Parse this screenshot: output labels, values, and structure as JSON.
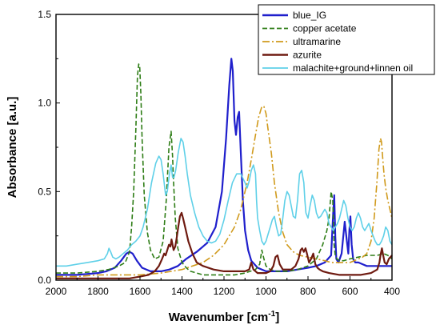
{
  "chart_data": {
    "type": "line",
    "title": "",
    "xlabel": "Wavenumber [cm",
    "xlabel_sup": "-1",
    "xlabel_end": "]",
    "ylabel": "Absorbance [a.u.]",
    "xlim": [
      2000,
      400
    ],
    "ylim": [
      0,
      1.5
    ],
    "x_reversed": true,
    "xticks": [
      2000,
      1800,
      1600,
      1400,
      1200,
      1000,
      800,
      600,
      400
    ],
    "xtick_labels": [
      "2000",
      "1800",
      "1600",
      "1400",
      "1200",
      "1000",
      "800",
      "600",
      "400"
    ],
    "yticks": [
      0.0,
      0.5,
      1.0,
      1.5
    ],
    "ytick_labels": [
      "0.0",
      "0.5",
      "1.0",
      "1.5"
    ],
    "grid": false,
    "legend_position": "top-right",
    "series": [
      {
        "name": "blue_IG",
        "color": "#1f1fcc",
        "dash": "solid",
        "x": [
          2000,
          1900,
          1800,
          1760,
          1720,
          1690,
          1665,
          1650,
          1635,
          1615,
          1590,
          1550,
          1500,
          1460,
          1420,
          1380,
          1330,
          1280,
          1240,
          1210,
          1190,
          1175,
          1165,
          1158,
          1150,
          1143,
          1135,
          1128,
          1120,
          1110,
          1100,
          1085,
          1070,
          1040,
          1000,
          960,
          900,
          850,
          800,
          760,
          720,
          690,
          680,
          675,
          670,
          665,
          655,
          640,
          625,
          615,
          608,
          603,
          598,
          592,
          585,
          575,
          560,
          540,
          520,
          500,
          480,
          460,
          440,
          420,
          400
        ],
        "y": [
          0.03,
          0.03,
          0.04,
          0.05,
          0.07,
          0.11,
          0.15,
          0.16,
          0.15,
          0.11,
          0.07,
          0.05,
          0.05,
          0.06,
          0.08,
          0.12,
          0.16,
          0.21,
          0.3,
          0.5,
          0.8,
          1.1,
          1.25,
          1.18,
          0.9,
          0.82,
          0.92,
          0.95,
          0.72,
          0.45,
          0.28,
          0.17,
          0.11,
          0.07,
          0.05,
          0.05,
          0.05,
          0.06,
          0.07,
          0.08,
          0.1,
          0.14,
          0.38,
          0.48,
          0.25,
          0.12,
          0.1,
          0.15,
          0.33,
          0.22,
          0.15,
          0.28,
          0.36,
          0.2,
          0.12,
          0.1,
          0.1,
          0.09,
          0.08,
          0.08,
          0.08,
          0.08,
          0.08,
          0.08,
          0.08
        ]
      },
      {
        "name": "copper acetate",
        "color": "#2e7d16",
        "dash": "dashed",
        "x": [
          2000,
          1900,
          1800,
          1750,
          1700,
          1670,
          1650,
          1640,
          1630,
          1620,
          1612,
          1606,
          1601,
          1596,
          1590,
          1580,
          1565,
          1550,
          1530,
          1510,
          1490,
          1475,
          1462,
          1452,
          1445,
          1440,
          1432,
          1420,
          1400,
          1380,
          1360,
          1330,
          1300,
          1250,
          1200,
          1150,
          1100,
          1050,
          1030,
          1020,
          1010,
          1000,
          980,
          950,
          900,
          850,
          800,
          760,
          730,
          710,
          700,
          690,
          682,
          676,
          670,
          662,
          650,
          630,
          600,
          560,
          520,
          500,
          470,
          440,
          420,
          400
        ],
        "y": [
          0.04,
          0.04,
          0.05,
          0.06,
          0.08,
          0.1,
          0.16,
          0.3,
          0.5,
          0.85,
          1.15,
          1.22,
          1.2,
          1.05,
          0.8,
          0.48,
          0.27,
          0.17,
          0.12,
          0.13,
          0.22,
          0.45,
          0.75,
          0.84,
          0.7,
          0.55,
          0.35,
          0.18,
          0.1,
          0.07,
          0.05,
          0.04,
          0.03,
          0.03,
          0.03,
          0.03,
          0.04,
          0.06,
          0.09,
          0.17,
          0.12,
          0.08,
          0.06,
          0.05,
          0.05,
          0.06,
          0.08,
          0.12,
          0.2,
          0.28,
          0.35,
          0.5,
          0.45,
          0.2,
          0.14,
          0.12,
          0.11,
          0.11,
          0.12,
          0.13,
          0.14,
          0.14,
          0.14,
          0.15,
          0.14,
          0.12
        ]
      },
      {
        "name": "ultramarine",
        "color": "#d09a1c",
        "dash": "dashdot",
        "x": [
          2000,
          1900,
          1800,
          1700,
          1600,
          1500,
          1400,
          1300,
          1250,
          1200,
          1150,
          1120,
          1090,
          1070,
          1050,
          1035,
          1020,
          1010,
          1000,
          990,
          975,
          960,
          940,
          920,
          900,
          870,
          840,
          800,
          760,
          720,
          690,
          670,
          650,
          620,
          600,
          580,
          560,
          540,
          520,
          500,
          485,
          472,
          462,
          455,
          450,
          445,
          438,
          430,
          420,
          410,
          400
        ],
        "y": [
          0.02,
          0.02,
          0.03,
          0.03,
          0.03,
          0.04,
          0.06,
          0.1,
          0.14,
          0.2,
          0.3,
          0.4,
          0.55,
          0.68,
          0.82,
          0.92,
          0.98,
          0.98,
          0.94,
          0.85,
          0.72,
          0.55,
          0.38,
          0.27,
          0.2,
          0.16,
          0.14,
          0.13,
          0.12,
          0.11,
          0.1,
          0.1,
          0.1,
          0.1,
          0.1,
          0.11,
          0.12,
          0.13,
          0.15,
          0.22,
          0.35,
          0.55,
          0.74,
          0.8,
          0.78,
          0.7,
          0.6,
          0.52,
          0.45,
          0.4,
          0.35
        ]
      },
      {
        "name": "azurite",
        "color": "#6e1a10",
        "dash": "solid",
        "x": [
          2000,
          1900,
          1800,
          1700,
          1650,
          1600,
          1560,
          1530,
          1510,
          1495,
          1485,
          1478,
          1470,
          1462,
          1455,
          1450,
          1445,
          1440,
          1432,
          1425,
          1418,
          1410,
          1402,
          1395,
          1385,
          1370,
          1350,
          1330,
          1300,
          1250,
          1200,
          1150,
          1100,
          1080,
          1070,
          1060,
          1040,
          1000,
          980,
          965,
          955,
          945,
          935,
          920,
          900,
          880,
          860,
          845,
          835,
          828,
          820,
          812,
          805,
          795,
          785,
          775,
          765,
          755,
          745,
          730,
          700,
          650,
          600,
          550,
          500,
          470,
          460,
          455,
          448,
          442,
          435,
          425,
          415,
          400
        ],
        "y": [
          0.01,
          0.01,
          0.01,
          0.01,
          0.01,
          0.02,
          0.03,
          0.05,
          0.08,
          0.12,
          0.15,
          0.14,
          0.17,
          0.2,
          0.19,
          0.23,
          0.2,
          0.17,
          0.19,
          0.24,
          0.3,
          0.36,
          0.38,
          0.35,
          0.3,
          0.22,
          0.15,
          0.1,
          0.08,
          0.06,
          0.05,
          0.05,
          0.05,
          0.06,
          0.1,
          0.06,
          0.04,
          0.04,
          0.05,
          0.08,
          0.13,
          0.14,
          0.09,
          0.06,
          0.06,
          0.06,
          0.08,
          0.12,
          0.17,
          0.18,
          0.16,
          0.18,
          0.15,
          0.1,
          0.12,
          0.15,
          0.09,
          0.07,
          0.06,
          0.05,
          0.04,
          0.03,
          0.03,
          0.03,
          0.04,
          0.06,
          0.1,
          0.14,
          0.18,
          0.14,
          0.1,
          0.09,
          0.12,
          0.14
        ]
      },
      {
        "name": "malachite+ground+linnen oil",
        "color": "#5fd0e8",
        "dash": "solid",
        "x": [
          2000,
          1950,
          1900,
          1850,
          1800,
          1770,
          1755,
          1748,
          1740,
          1730,
          1715,
          1700,
          1680,
          1660,
          1640,
          1620,
          1600,
          1585,
          1565,
          1545,
          1525,
          1510,
          1500,
          1490,
          1478,
          1470,
          1460,
          1452,
          1445,
          1438,
          1430,
          1418,
          1405,
          1395,
          1385,
          1375,
          1360,
          1340,
          1320,
          1300,
          1280,
          1260,
          1240,
          1220,
          1200,
          1180,
          1160,
          1140,
          1120,
          1100,
          1090,
          1080,
          1070,
          1060,
          1050,
          1045,
          1040,
          1030,
          1020,
          1010,
          1000,
          990,
          980,
          970,
          960,
          950,
          940,
          930,
          920,
          910,
          900,
          890,
          880,
          870,
          860,
          850,
          840,
          830,
          820,
          815,
          810,
          800,
          790,
          780,
          770,
          760,
          750,
          740,
          730,
          720,
          710,
          700,
          690,
          680,
          670,
          660,
          650,
          640,
          630,
          620,
          610,
          600,
          590,
          580,
          570,
          560,
          550,
          540,
          530,
          520,
          510,
          500,
          490,
          480,
          470,
          460,
          450,
          440,
          430,
          420,
          410,
          400
        ],
        "y": [
          0.08,
          0.08,
          0.09,
          0.1,
          0.11,
          0.12,
          0.15,
          0.18,
          0.16,
          0.13,
          0.12,
          0.13,
          0.15,
          0.17,
          0.2,
          0.22,
          0.25,
          0.3,
          0.4,
          0.55,
          0.66,
          0.7,
          0.68,
          0.6,
          0.48,
          0.5,
          0.6,
          0.65,
          0.58,
          0.58,
          0.62,
          0.72,
          0.8,
          0.78,
          0.7,
          0.6,
          0.48,
          0.38,
          0.3,
          0.25,
          0.22,
          0.21,
          0.22,
          0.26,
          0.34,
          0.45,
          0.55,
          0.6,
          0.6,
          0.55,
          0.52,
          0.56,
          0.62,
          0.65,
          0.6,
          0.45,
          0.35,
          0.28,
          0.22,
          0.2,
          0.22,
          0.26,
          0.3,
          0.34,
          0.36,
          0.3,
          0.25,
          0.26,
          0.35,
          0.45,
          0.5,
          0.48,
          0.42,
          0.36,
          0.35,
          0.45,
          0.6,
          0.62,
          0.55,
          0.45,
          0.38,
          0.35,
          0.42,
          0.48,
          0.45,
          0.38,
          0.35,
          0.36,
          0.38,
          0.4,
          0.38,
          0.32,
          0.3,
          0.28,
          0.3,
          0.32,
          0.35,
          0.4,
          0.45,
          0.42,
          0.35,
          0.3,
          0.28,
          0.3,
          0.35,
          0.38,
          0.35,
          0.3,
          0.28,
          0.3,
          0.32,
          0.28,
          0.25,
          0.22,
          0.2,
          0.2,
          0.22,
          0.25,
          0.3,
          0.28,
          0.22,
          0.2
        ]
      }
    ]
  }
}
